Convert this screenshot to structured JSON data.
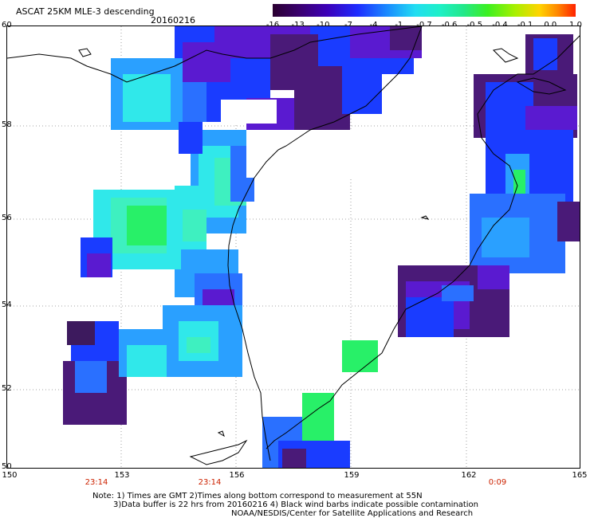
{
  "header": {
    "title": "ASCAT 25KM MLE-3 descending",
    "date": "20160216"
  },
  "colorbar": {
    "labels": [
      "-16",
      "-13",
      "-10",
      "-7",
      "-4",
      "-1",
      "-0.7",
      "-0.6",
      "-0.5",
      "-0.4",
      "-0.1",
      "0.0",
      "1.0"
    ],
    "colors": [
      "#2a0030",
      "#3a0070",
      "#3c00b8",
      "#1e2cff",
      "#1a8cff",
      "#22ddf2",
      "#1ef0c8",
      "#22e88a",
      "#3cf020",
      "#a8f000",
      "#ffd400",
      "#ff8800",
      "#ff2200"
    ]
  },
  "map": {
    "lat_labels": [
      "60",
      "58",
      "56",
      "54",
      "52",
      "50"
    ],
    "lon_labels": [
      "150",
      "153",
      "156",
      "159",
      "162",
      "165"
    ],
    "time_labels": [
      "23:14",
      "23:14",
      "0:09"
    ],
    "colors": {
      "deep_purple": "#3d1a5e",
      "dark_purple": "#4a1a78",
      "violet": "#5a1ad0",
      "blue": "#1a3cff",
      "mid_blue": "#2a70ff",
      "light_blue": "#2aa0ff",
      "cyan": "#30e8ea",
      "aqua": "#3ef0c0",
      "green": "#28f068",
      "lime": "#22f030"
    }
  },
  "notes": {
    "line1": "Note: 1) Times are GMT 2)Times along bottom correspond to measurement at 55N",
    "line2": "3)Data buffer is 22 hrs from 20160216 4) Black wind barbs indicate possible contamination",
    "line3": "NOAA/NESDIS/Center for Satellite Applications and Research"
  }
}
